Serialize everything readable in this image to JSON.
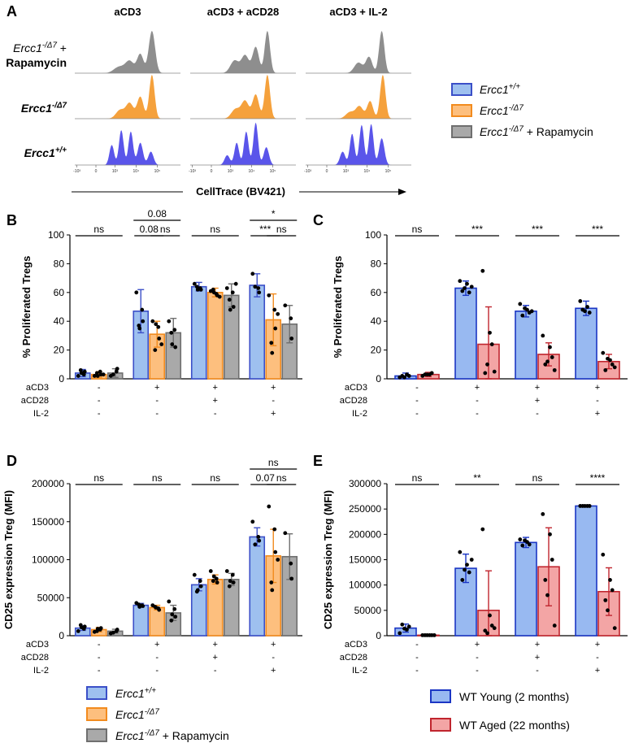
{
  "colors": {
    "wt": "#3b4fc8",
    "wt_fill": "#9ec0ef",
    "mut": "#f28b1e",
    "mut_fill": "#fdbf7e",
    "rapa": "#6f6f6f",
    "rapa_fill": "#a9a9a9",
    "young": "#1b36c4",
    "young_fill": "#98b9f1",
    "aged": "#c0252e",
    "aged_fill": "#f3a5a5",
    "histo_gray": "#8e8e8e",
    "histo_orange": "#f5a13c",
    "histo_blue": "#5a55ea"
  },
  "panelA": {
    "letter": "A",
    "columns": [
      "aCD3",
      "aCD3 + aCD28",
      "aCD3 + IL-2"
    ],
    "rows": [
      {
        "base": "Ercc1",
        "sup": "-/Δ7",
        "tail": " +",
        "line2": "Rapamycin",
        "series": "rapa"
      },
      {
        "base": "Ercc1",
        "sup": "-/Δ7",
        "tail": "",
        "line2": "",
        "series": "mut"
      },
      {
        "base": "Ercc1",
        "sup": "+/+",
        "tail": "",
        "line2": "",
        "series": "wt"
      }
    ],
    "axis_ticks": [
      "-10³",
      "0",
      "10³",
      "10⁴",
      "10⁵"
    ],
    "xlabel": "CellTrace (BV421)",
    "legend": [
      {
        "base": "Ercc1",
        "sup": "+/+",
        "tail": "",
        "series": "wt"
      },
      {
        "base": "Ercc1",
        "sup": "-/Δ7",
        "tail": "",
        "series": "mut"
      },
      {
        "base": "Ercc1",
        "sup": "-/Δ7",
        "tail": " + Rapamycin",
        "series": "rapa"
      }
    ]
  },
  "conditions": {
    "row_labels": [
      "aCD3",
      "aCD28",
      "IL-2"
    ],
    "groups": [
      [
        "-",
        "-",
        "-"
      ],
      [
        "+",
        "-",
        "-"
      ],
      [
        "+",
        "+",
        "-"
      ],
      [
        "+",
        "-",
        "+"
      ]
    ]
  },
  "chart_data": [
    {
      "panel": "B",
      "type": "bar",
      "ylabel": "% Proliferated Tregs",
      "ylim": [
        0,
        100
      ],
      "yticks": [
        "0",
        "20",
        "40",
        "60",
        "80",
        "100"
      ],
      "groups": [
        "none",
        "aCD3",
        "aCD3 + aCD28",
        "aCD3 + IL-2"
      ],
      "series": [
        {
          "name": "Ercc1+/+",
          "key": "wt",
          "values": [
            4,
            47,
            64,
            65
          ],
          "errors": [
            2.5,
            15,
            3,
            8
          ],
          "points": [
            [
              2,
              3,
              5,
              6,
              4
            ],
            [
              60,
              48,
              40,
              37,
              35
            ],
            [
              66,
              63,
              62,
              64,
              62
            ],
            [
              73,
              63,
              60,
              64
            ]
          ]
        },
        {
          "name": "Ercc1-/Δ7",
          "key": "mut",
          "values": [
            3,
            31,
            60,
            41
          ],
          "errors": [
            2,
            9,
            3,
            18
          ],
          "points": [
            [
              2,
              5,
              3,
              4,
              2,
              3
            ],
            [
              40,
              36,
              28,
              20,
              38,
              24
            ],
            [
              61,
              59,
              58,
              62,
              60,
              57
            ],
            [
              58,
              48,
              35,
              25,
              18,
              45
            ]
          ]
        },
        {
          "name": "Ercc1-/Δ7 + Rapamycin",
          "key": "rapa",
          "values": [
            4,
            32,
            58,
            38
          ],
          "errors": [
            3,
            10,
            8,
            13
          ],
          "points": [
            [
              2,
              5,
              7,
              3
            ],
            [
              40,
              34,
              22,
              32,
              24
            ],
            [
              63,
              60,
              50,
              55,
              48,
              66
            ],
            [
              51,
              42,
              28
            ]
          ]
        }
      ],
      "significance": [
        {
          "group": 0,
          "from": 0,
          "to": 2,
          "label": "ns",
          "level": 0
        },
        {
          "group": 1,
          "from": 0,
          "to": 2,
          "label": "0.08",
          "level": 1
        },
        {
          "group": 1,
          "from": 0,
          "to": 1,
          "label": "0.08",
          "level": 0
        },
        {
          "group": 1,
          "from": 1,
          "to": 2,
          "label": "ns",
          "level": 0
        },
        {
          "group": 2,
          "from": 0,
          "to": 2,
          "label": "ns",
          "level": 0
        },
        {
          "group": 3,
          "from": 0,
          "to": 2,
          "label": "*",
          "level": 1
        },
        {
          "group": 3,
          "from": 0,
          "to": 1,
          "label": "***",
          "level": 0
        },
        {
          "group": 3,
          "from": 1,
          "to": 2,
          "label": "ns",
          "level": 0
        }
      ]
    },
    {
      "panel": "C",
      "type": "bar",
      "ylabel": "% Proliferated Tregs",
      "ylim": [
        0,
        100
      ],
      "yticks": [
        "0",
        "20",
        "40",
        "60",
        "80",
        "100"
      ],
      "groups": [
        "none",
        "aCD3",
        "aCD3 + aCD28",
        "aCD3 + IL-2"
      ],
      "series": [
        {
          "name": "WT Young (2 months)",
          "key": "young",
          "values": [
            2,
            63,
            47,
            49
          ],
          "errors": [
            2,
            5,
            4,
            5
          ],
          "points": [
            [
              1,
              3,
              2,
              2,
              1
            ],
            [
              68,
              66,
              60,
              61,
              63,
              64
            ],
            [
              52,
              48,
              46,
              44,
              49,
              47
            ],
            [
              54,
              50,
              46,
              48,
              47
            ]
          ]
        },
        {
          "name": "WT Aged (22 months)",
          "key": "aged",
          "values": [
            3,
            24,
            17,
            12
          ],
          "errors": [
            1.5,
            26,
            8,
            5
          ],
          "points": [
            [
              2,
              3,
              4,
              3,
              3
            ],
            [
              75,
              32,
              24,
              4,
              10,
              5
            ],
            [
              30,
              22,
              15,
              10,
              12,
              6
            ],
            [
              18,
              13,
              10,
              6,
              14,
              8
            ]
          ]
        }
      ],
      "significance": [
        {
          "group": 0,
          "from": 0,
          "to": 1,
          "label": "ns",
          "level": 0
        },
        {
          "group": 1,
          "from": 0,
          "to": 1,
          "label": "***",
          "level": 0
        },
        {
          "group": 2,
          "from": 0,
          "to": 1,
          "label": "***",
          "level": 0
        },
        {
          "group": 3,
          "from": 0,
          "to": 1,
          "label": "***",
          "level": 0
        }
      ]
    },
    {
      "panel": "D",
      "type": "bar",
      "ylabel": "CD25 expression Treg (MFI)",
      "ylim": [
        0,
        200000
      ],
      "yticks": [
        "0",
        "50000",
        "100000",
        "150000",
        "200000"
      ],
      "groups": [
        "none",
        "aCD3",
        "aCD3 + aCD28",
        "aCD3 + IL-2"
      ],
      "series": [
        {
          "name": "Ercc1+/+",
          "key": "wt",
          "values": [
            10000,
            40000,
            67000,
            130000
          ],
          "errors": [
            3000,
            2500,
            8000,
            12000
          ],
          "points": [
            [
              6000,
              9000,
              12000,
              14000,
              11000
            ],
            [
              43000,
              40000,
              39000,
              41000,
              38000
            ],
            [
              80000,
              72000,
              65000,
              58000,
              60000
            ],
            [
              150000,
              130000,
              125000,
              120000
            ]
          ]
        },
        {
          "name": "Ercc1-/Δ7",
          "key": "mut",
          "values": [
            8000,
            37000,
            74000,
            105000
          ],
          "errors": [
            3000,
            3000,
            6000,
            35000
          ],
          "points": [
            [
              5000,
              8000,
              10000,
              6000,
              9000
            ],
            [
              40000,
              36000,
              34000,
              38000,
              37000
            ],
            [
              85000,
              75000,
              70000,
              72000,
              78000
            ],
            [
              170000,
              140000,
              110000,
              70000,
              60000,
              100000
            ]
          ]
        },
        {
          "name": "Ercc1-/Δ7 + Rapamycin",
          "key": "rapa",
          "values": [
            6000,
            30000,
            74000,
            104000
          ],
          "errors": [
            2500,
            10000,
            8000,
            30000
          ],
          "points": [
            [
              3000,
              6000,
              8000,
              4000
            ],
            [
              45000,
              35000,
              25000,
              20000,
              28000
            ],
            [
              85000,
              80000,
              70000,
              65000,
              72000
            ],
            [
              135000,
              95000,
              75000
            ]
          ]
        }
      ],
      "significance": [
        {
          "group": 0,
          "from": 0,
          "to": 2,
          "label": "ns",
          "level": 0
        },
        {
          "group": 1,
          "from": 0,
          "to": 2,
          "label": "ns",
          "level": 0
        },
        {
          "group": 2,
          "from": 0,
          "to": 2,
          "label": "ns",
          "level": 0
        },
        {
          "group": 3,
          "from": 0,
          "to": 2,
          "label": "ns",
          "level": 1
        },
        {
          "group": 3,
          "from": 0,
          "to": 1,
          "label": "0.07",
          "level": 0
        },
        {
          "group": 3,
          "from": 1,
          "to": 2,
          "label": "ns",
          "level": 0
        }
      ]
    },
    {
      "panel": "E",
      "type": "bar",
      "ylabel": "CD25 expression Treg (MFI)",
      "ylim": [
        0,
        300000
      ],
      "yticks": [
        "0",
        "50000",
        "100000",
        "150000",
        "200000",
        "250000",
        "300000"
      ],
      "groups": [
        "none",
        "aCD3",
        "aCD3 + aCD28",
        "aCD3 + IL-2"
      ],
      "series": [
        {
          "name": "WT Young (2 months)",
          "key": "young",
          "values": [
            15000,
            133000,
            184000,
            256000
          ],
          "errors": [
            8000,
            28000,
            10000,
            1000
          ],
          "points": [
            [
              5000,
              12000,
              18000,
              22000,
              14000
            ],
            [
              165000,
              140000,
              125000,
              110000,
              130000,
              150000
            ],
            [
              190000,
              185000,
              180000,
              178000,
              188000
            ],
            [
              256000,
              256000,
              256000,
              256000,
              256000
            ]
          ]
        },
        {
          "name": "WT Aged (22 months)",
          "key": "aged",
          "values": [
            1000,
            50000,
            136000,
            87000
          ],
          "errors": [
            500,
            78000,
            77000,
            47000
          ],
          "points": [
            [
              1000,
              1000,
              1000,
              1000,
              1000,
              1000
            ],
            [
              210000,
              40000,
              20000,
              10000,
              5000,
              15000
            ],
            [
              240000,
              200000,
              150000,
              110000,
              80000,
              20000
            ],
            [
              160000,
              110000,
              90000,
              70000,
              50000,
              15000
            ]
          ]
        }
      ],
      "significance": [
        {
          "group": 0,
          "from": 0,
          "to": 1,
          "label": "ns",
          "level": 0
        },
        {
          "group": 1,
          "from": 0,
          "to": 1,
          "label": "**",
          "level": 0
        },
        {
          "group": 2,
          "from": 0,
          "to": 1,
          "label": "ns",
          "level": 0
        },
        {
          "group": 3,
          "from": 0,
          "to": 1,
          "label": "****",
          "level": 0
        }
      ]
    }
  ],
  "legendD": [
    {
      "base": "Ercc1",
      "sup": "+/+",
      "tail": "",
      "series": "wt"
    },
    {
      "base": "Ercc1",
      "sup": "-/Δ7",
      "tail": "",
      "series": "mut"
    },
    {
      "base": "Ercc1",
      "sup": "-/Δ7",
      "tail": " + Rapamycin",
      "series": "rapa"
    }
  ],
  "legendE": [
    {
      "label": "WT Young (2 months)",
      "series": "young"
    },
    {
      "label": "WT Aged (22 months)",
      "series": "aged"
    }
  ]
}
